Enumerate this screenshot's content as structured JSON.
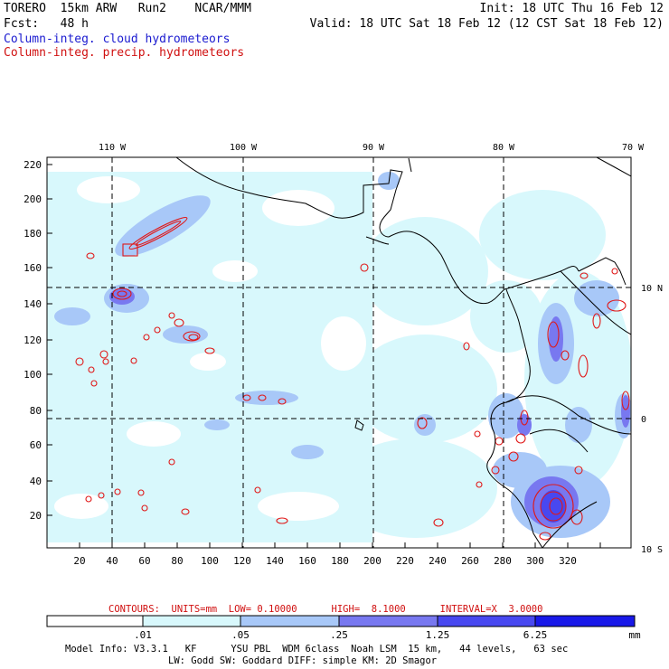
{
  "header": {
    "line1_left": "TORERO  15km ARW   Run2    NCAR/MMM",
    "line1_right": "Init: 18 UTC Thu 16 Feb 12",
    "line2_left": "Fcst:   48 h",
    "line2_right": "Valid: 18 UTC Sat 18 Feb 12 (12 CST Sat 18 Feb 12)",
    "legend_cloud": "Column-integ. cloud hydrometeors",
    "legend_precip": "Column-integ. precip. hydrometeors"
  },
  "map": {
    "lon_labels": [
      "110 W",
      "100 W",
      "90 W",
      "80 W",
      "70 W"
    ],
    "lat_labels": [
      "10 N",
      "0",
      "10 S"
    ],
    "y_ticks": [
      "220",
      "200",
      "180",
      "160",
      "140",
      "120",
      "100",
      "80",
      "60",
      "40",
      "20"
    ],
    "x_ticks": [
      "20",
      "40",
      "60",
      "80",
      "100",
      "120",
      "140",
      "160",
      "180",
      "200",
      "220",
      "240",
      "260",
      "280",
      "300",
      "320"
    ]
  },
  "contour_info": "CONTOURS:  UNITS=mm  LOW= 0.10000      HIGH=  8.1000      INTERVAL=X  3.0000",
  "colorbar": {
    "labels": [
      ".01",
      ".05",
      ".25",
      "1.25",
      "6.25"
    ],
    "unit": "mm",
    "colors": [
      "#ffffff",
      "#d8f8fc",
      "#a8c8f8",
      "#7878f0",
      "#4848f0",
      "#1818e8"
    ]
  },
  "footer": {
    "line1": "Model Info: V3.3.1   KF      YSU PBL  WDM 6class  Noah LSM  15 km,   44 levels,   63 sec",
    "line2": "LW: Godd SW: Goddard DIFF: simple KM: 2D Smagor"
  },
  "colors": {
    "cloud_legend": "#1a1ad0",
    "precip_legend": "#d01010"
  }
}
